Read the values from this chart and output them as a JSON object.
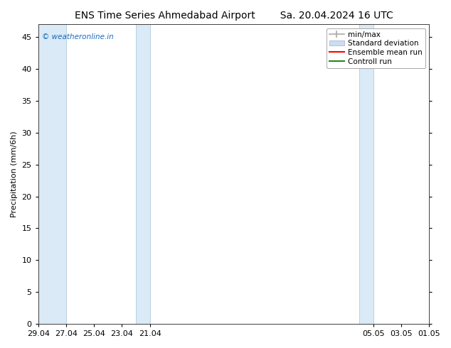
{
  "title": "ENS Time Series Ahmedabad Airport",
  "title2": "Sa. 20.04.2024 16 UTC",
  "ylabel": "Precipitation (mm/6h)",
  "watermark": "© weatheronline.in",
  "watermark_color": "#1a6bbf",
  "ylim": [
    0,
    47
  ],
  "yticks": [
    0,
    5,
    10,
    15,
    20,
    25,
    30,
    35,
    40,
    45
  ],
  "background_color": "#ffffff",
  "shaded_band_color": "#daeaf7",
  "shaded_band_border_color": "#b0ccdd",
  "x_tick_labels": [
    "21.04",
    "23.04",
    "25.04",
    "27.04",
    "29.04",
    "01.05",
    "03.05",
    "05.05"
  ],
  "x_tick_positions": [
    21.04,
    23.04,
    25.04,
    27.04,
    29.04,
    1.05,
    3.05,
    5.05
  ],
  "shaded_columns": [
    {
      "start": 21.04,
      "end": 22.04
    },
    {
      "start": 27.04,
      "end": 29.04
    },
    {
      "start": 5.05,
      "end": 6.05
    }
  ],
  "x_min": 21.04,
  "x_max": 6.06,
  "legend_items": [
    {
      "label": "min/max",
      "color": "#aaaaaa",
      "lw": 1.5
    },
    {
      "label": "Standard deviation",
      "color": "#c8dff0",
      "lw": 6
    },
    {
      "label": "Ensemble mean run",
      "color": "#ff0000",
      "lw": 1.5
    },
    {
      "label": "Controll run",
      "color": "#228822",
      "lw": 1.5
    }
  ],
  "title_fontsize": 10,
  "axis_label_fontsize": 8,
  "tick_fontsize": 8,
  "legend_fontsize": 7.5
}
